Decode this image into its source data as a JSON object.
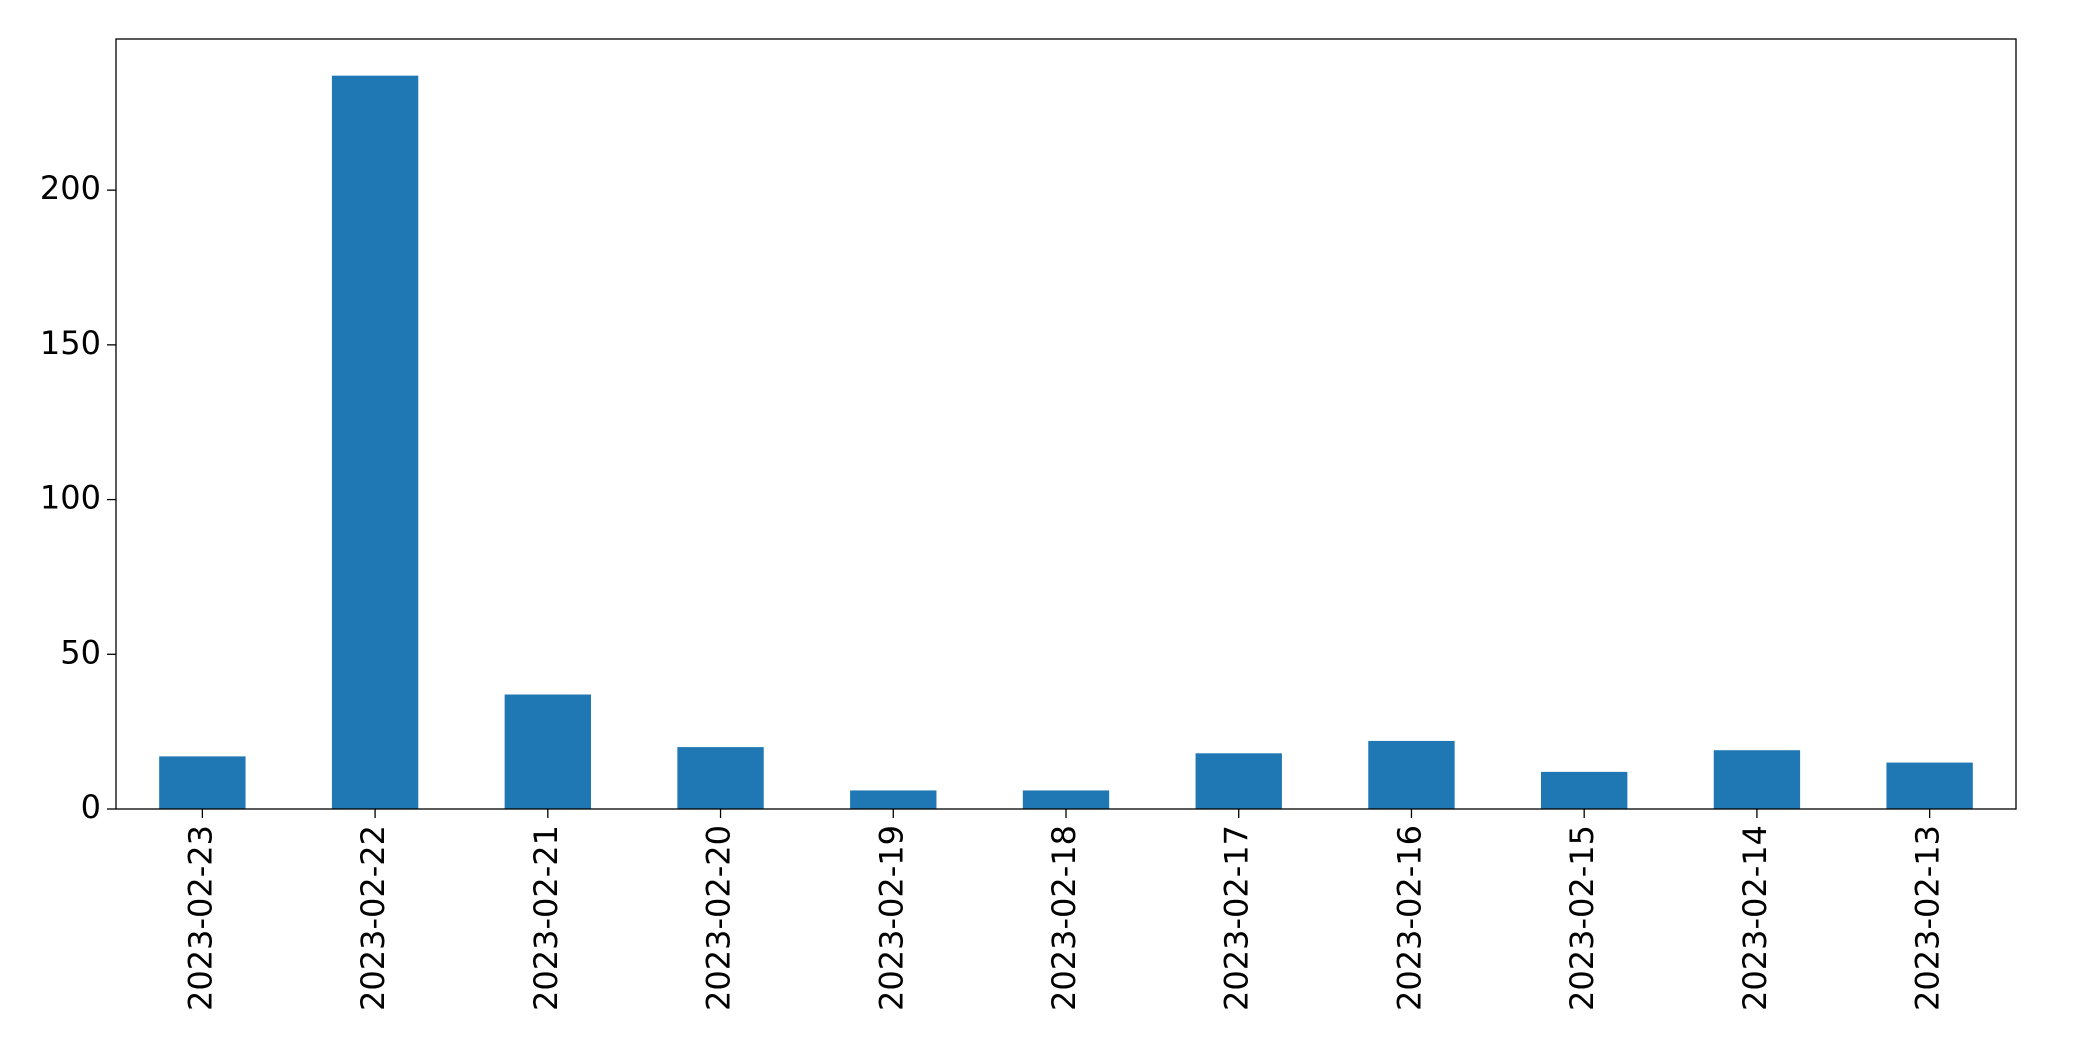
{
  "chart_data": {
    "type": "bar",
    "categories": [
      "2023-02-23",
      "2023-02-22",
      "2023-02-21",
      "2023-02-20",
      "2023-02-19",
      "2023-02-18",
      "2023-02-17",
      "2023-02-16",
      "2023-02-15",
      "2023-02-14",
      "2023-02-13"
    ],
    "values": [
      17,
      237,
      37,
      20,
      6,
      6,
      18,
      22,
      12,
      19,
      15
    ],
    "color": "#1f77b4",
    "ylim": [
      0,
      248.85
    ],
    "yticks": [
      0,
      50,
      100,
      150,
      200
    ],
    "grid": false
  }
}
